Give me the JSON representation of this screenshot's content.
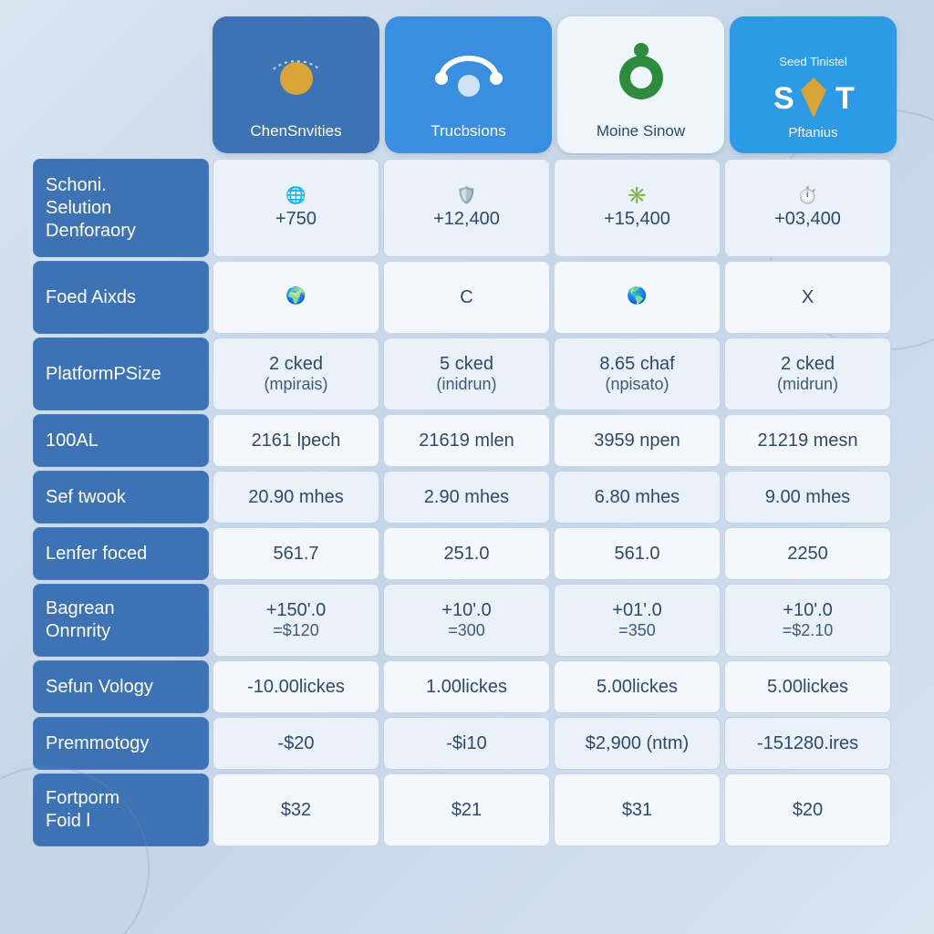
{
  "colors": {
    "page_bg_from": "#d8e4f0",
    "page_bg_to": "#c4d5e8",
    "label_bg": "#3d72b4",
    "cell_bg": "#eaf1f9",
    "cell_bg_alt": "#f4f8fc",
    "text": "#2e4a6b",
    "tile1": "#3d72b4",
    "tile2": "#3a8ee0",
    "tile3": "#eef5fb",
    "tile3_text": "#2e4a6b",
    "tile4": "#2d9ae5",
    "icon_green": "#2e8b3e",
    "icon_gold": "#d9a538"
  },
  "header_tiles": [
    {
      "label": "ChenSnvities",
      "sup": "",
      "sub": ""
    },
    {
      "label": "Trucbsions",
      "sup": "",
      "sub": ""
    },
    {
      "label": "Moine Sinow",
      "sup": "",
      "sub": ""
    },
    {
      "label": "S       T",
      "sup": "Seed Tinistel",
      "sub": "Pftanius"
    }
  ],
  "rows": [
    {
      "labels": [
        "Schoni.",
        "Selution",
        "Denforaory"
      ],
      "cells": [
        {
          "icon": "🌐",
          "v1": "+750"
        },
        {
          "icon": "🛡️",
          "v1": "+12,400"
        },
        {
          "icon": "✳️",
          "v1": "+15,400"
        },
        {
          "icon": "⏱️",
          "v1": "+03,400"
        }
      ],
      "h": "h-tall"
    },
    {
      "labels": [
        "Foed Aixds"
      ],
      "cells": [
        {
          "icon": "🌍",
          "v1": ""
        },
        {
          "v1": "C"
        },
        {
          "icon": "🌎",
          "v1": ""
        },
        {
          "v1": "X"
        }
      ],
      "h": "h-med"
    },
    {
      "labels": [
        "PlatformPSize"
      ],
      "cells": [
        {
          "v1": "2 cked",
          "v2": "(mpirais)"
        },
        {
          "v1": "5 cked",
          "v2": "(inidrun)"
        },
        {
          "v1": "8.65 chaf",
          "v2": "(npisato)"
        },
        {
          "v1": "2 cked",
          "v2": "(midrun)"
        }
      ],
      "h": "h-med"
    },
    {
      "labels": [
        "100AL"
      ],
      "cells": [
        {
          "v1": "2161 lpech"
        },
        {
          "v1": "21619 mlen"
        },
        {
          "v1": "3959 npen"
        },
        {
          "v1": "21219 mesn"
        }
      ],
      "h": "h-short"
    },
    {
      "labels": [
        "Sef twook"
      ],
      "cells": [
        {
          "v1": "20.90 mhes"
        },
        {
          "v1": "2.90 mhes"
        },
        {
          "v1": "6.80 mhes"
        },
        {
          "v1": "9.00 mhes"
        }
      ],
      "h": "h-short"
    },
    {
      "labels": [
        "Lenfer foced"
      ],
      "cells": [
        {
          "v1": "561.7"
        },
        {
          "v1": "251.0"
        },
        {
          "v1": "561.0"
        },
        {
          "v1": "2250"
        }
      ],
      "h": "h-short"
    },
    {
      "labels": [
        "Bagrean",
        "Onrnrity"
      ],
      "cells": [
        {
          "v1": "+150'.0",
          "v2": "=$120"
        },
        {
          "v1": "+10'.0",
          "v2": "=300"
        },
        {
          "v1": "+01'.0",
          "v2": "=350"
        },
        {
          "v1": "+10'.0",
          "v2": "=$2.10"
        }
      ],
      "h": "h-med"
    },
    {
      "labels": [
        "Sefun Vology"
      ],
      "cells": [
        {
          "v1": "-10.00lickes"
        },
        {
          "v1": "1.00lickes"
        },
        {
          "v1": "5.00lickes"
        },
        {
          "v1": "5.00lickes"
        }
      ],
      "h": "h-short"
    },
    {
      "labels": [
        "Premmotogy"
      ],
      "cells": [
        {
          "v1": "-$20"
        },
        {
          "v1": "-$i10"
        },
        {
          "v1": "$2,900 (ntm)"
        },
        {
          "v1": "-151280.ires"
        }
      ],
      "h": "h-short"
    },
    {
      "labels": [
        "Fortporm",
        "Foid l"
      ],
      "cells": [
        {
          "v1": "$32"
        },
        {
          "v1": "$21"
        },
        {
          "v1": "$31"
        },
        {
          "v1": "$20"
        }
      ],
      "h": "h-med"
    }
  ]
}
